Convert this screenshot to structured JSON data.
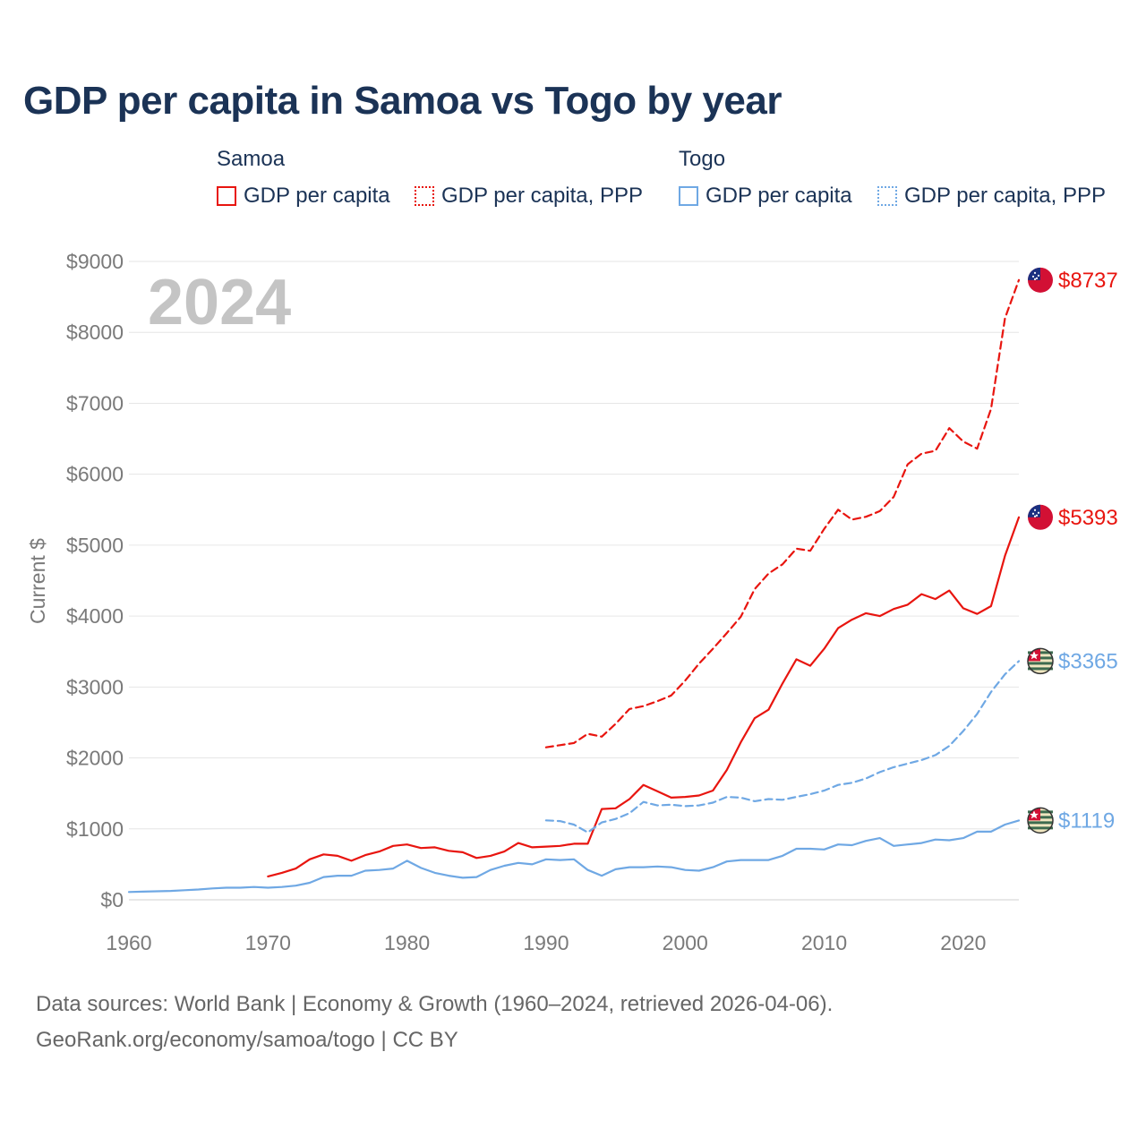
{
  "title": "GDP per capita in Samoa vs Togo by year",
  "legend": {
    "groups": [
      {
        "name": "Samoa",
        "items": [
          "GDP per capita",
          "GDP per capita, PPP"
        ],
        "color": "#e8150f"
      },
      {
        "name": "Togo",
        "items": [
          "GDP per capita",
          "GDP per capita, PPP"
        ],
        "color": "#6fa8e4"
      }
    ]
  },
  "footer": {
    "line1": "Data sources: World Bank | Economy & Growth (1960–2024, retrieved 2026-04-06).",
    "line2": "GeoRank.org/economy/samoa/togo | CC BY"
  },
  "chart_data": {
    "type": "line",
    "title": "GDP per capita in Samoa vs Togo by year",
    "ylabel": "Current $",
    "xlabel": "",
    "year_watermark": "2024",
    "xlim": [
      1960,
      2024
    ],
    "ylim": [
      0,
      9000
    ],
    "x_ticks": [
      1960,
      1970,
      1980,
      1990,
      2000,
      2010,
      2020
    ],
    "x_tick_labels": [
      "1960",
      "1970",
      "1980",
      "1990",
      "2000",
      "2010",
      "2020"
    ],
    "y_ticks": [
      0,
      1000,
      2000,
      3000,
      4000,
      5000,
      6000,
      7000,
      8000,
      9000
    ],
    "y_tick_labels": [
      "$0",
      "$1000",
      "$2000",
      "$3000",
      "$4000",
      "$5000",
      "$6000",
      "$7000",
      "$8000",
      "$9000"
    ],
    "series": [
      {
        "name": "Samoa GDP per capita, PPP",
        "country": "Samoa",
        "color": "#e8150f",
        "dash": "dashed",
        "end_label": "$8737",
        "flag": "samoa-flag",
        "start_year": 1990,
        "values": [
          2150,
          2180,
          2210,
          2340,
          2300,
          2480,
          2690,
          2730,
          2800,
          2880,
          3090,
          3330,
          3540,
          3760,
          3990,
          4380,
          4600,
          4730,
          4950,
          4920,
          5230,
          5500,
          5360,
          5400,
          5480,
          5680,
          6140,
          6290,
          6330,
          6650,
          6460,
          6360,
          6920,
          8200,
          8737
        ]
      },
      {
        "name": "Samoa GDP per capita",
        "country": "Samoa",
        "color": "#e8150f",
        "dash": "solid",
        "end_label": "$5393",
        "flag": "samoa-flag",
        "start_year": 1970,
        "values": [
          330,
          380,
          440,
          570,
          640,
          620,
          550,
          630,
          680,
          760,
          780,
          730,
          740,
          690,
          670,
          590,
          620,
          680,
          800,
          740,
          750,
          760,
          790,
          790,
          1280,
          1290,
          1420,
          1620,
          1530,
          1440,
          1450,
          1470,
          1540,
          1830,
          2220,
          2560,
          2680,
          3050,
          3390,
          3300,
          3540,
          3830,
          3950,
          4040,
          4000,
          4100,
          4160,
          4310,
          4240,
          4360,
          4110,
          4030,
          4140,
          4850,
          5393
        ]
      },
      {
        "name": "Togo GDP per capita, PPP",
        "country": "Togo",
        "color": "#6fa8e4",
        "dash": "dashed",
        "end_label": "$3365",
        "flag": "togo-flag",
        "start_year": 1990,
        "values": [
          1120,
          1110,
          1060,
          950,
          1090,
          1140,
          1220,
          1380,
          1330,
          1340,
          1320,
          1330,
          1370,
          1450,
          1440,
          1390,
          1420,
          1410,
          1450,
          1490,
          1540,
          1620,
          1650,
          1710,
          1800,
          1870,
          1920,
          1970,
          2040,
          2170,
          2380,
          2620,
          2930,
          3180,
          3365
        ]
      },
      {
        "name": "Togo GDP per capita",
        "country": "Togo",
        "color": "#6fa8e4",
        "dash": "solid",
        "end_label": "$1119",
        "flag": "togo-flag",
        "start_year": 1960,
        "values": [
          110,
          115,
          120,
          125,
          135,
          145,
          160,
          170,
          170,
          180,
          170,
          180,
          200,
          240,
          320,
          340,
          340,
          410,
          420,
          440,
          550,
          450,
          380,
          340,
          310,
          320,
          420,
          480,
          520,
          500,
          570,
          560,
          570,
          420,
          340,
          430,
          460,
          460,
          470,
          460,
          420,
          410,
          460,
          540,
          560,
          560,
          560,
          620,
          720,
          720,
          710,
          780,
          770,
          830,
          870,
          760,
          780,
          800,
          850,
          840,
          870,
          960,
          960,
          1060,
          1119
        ]
      }
    ]
  }
}
